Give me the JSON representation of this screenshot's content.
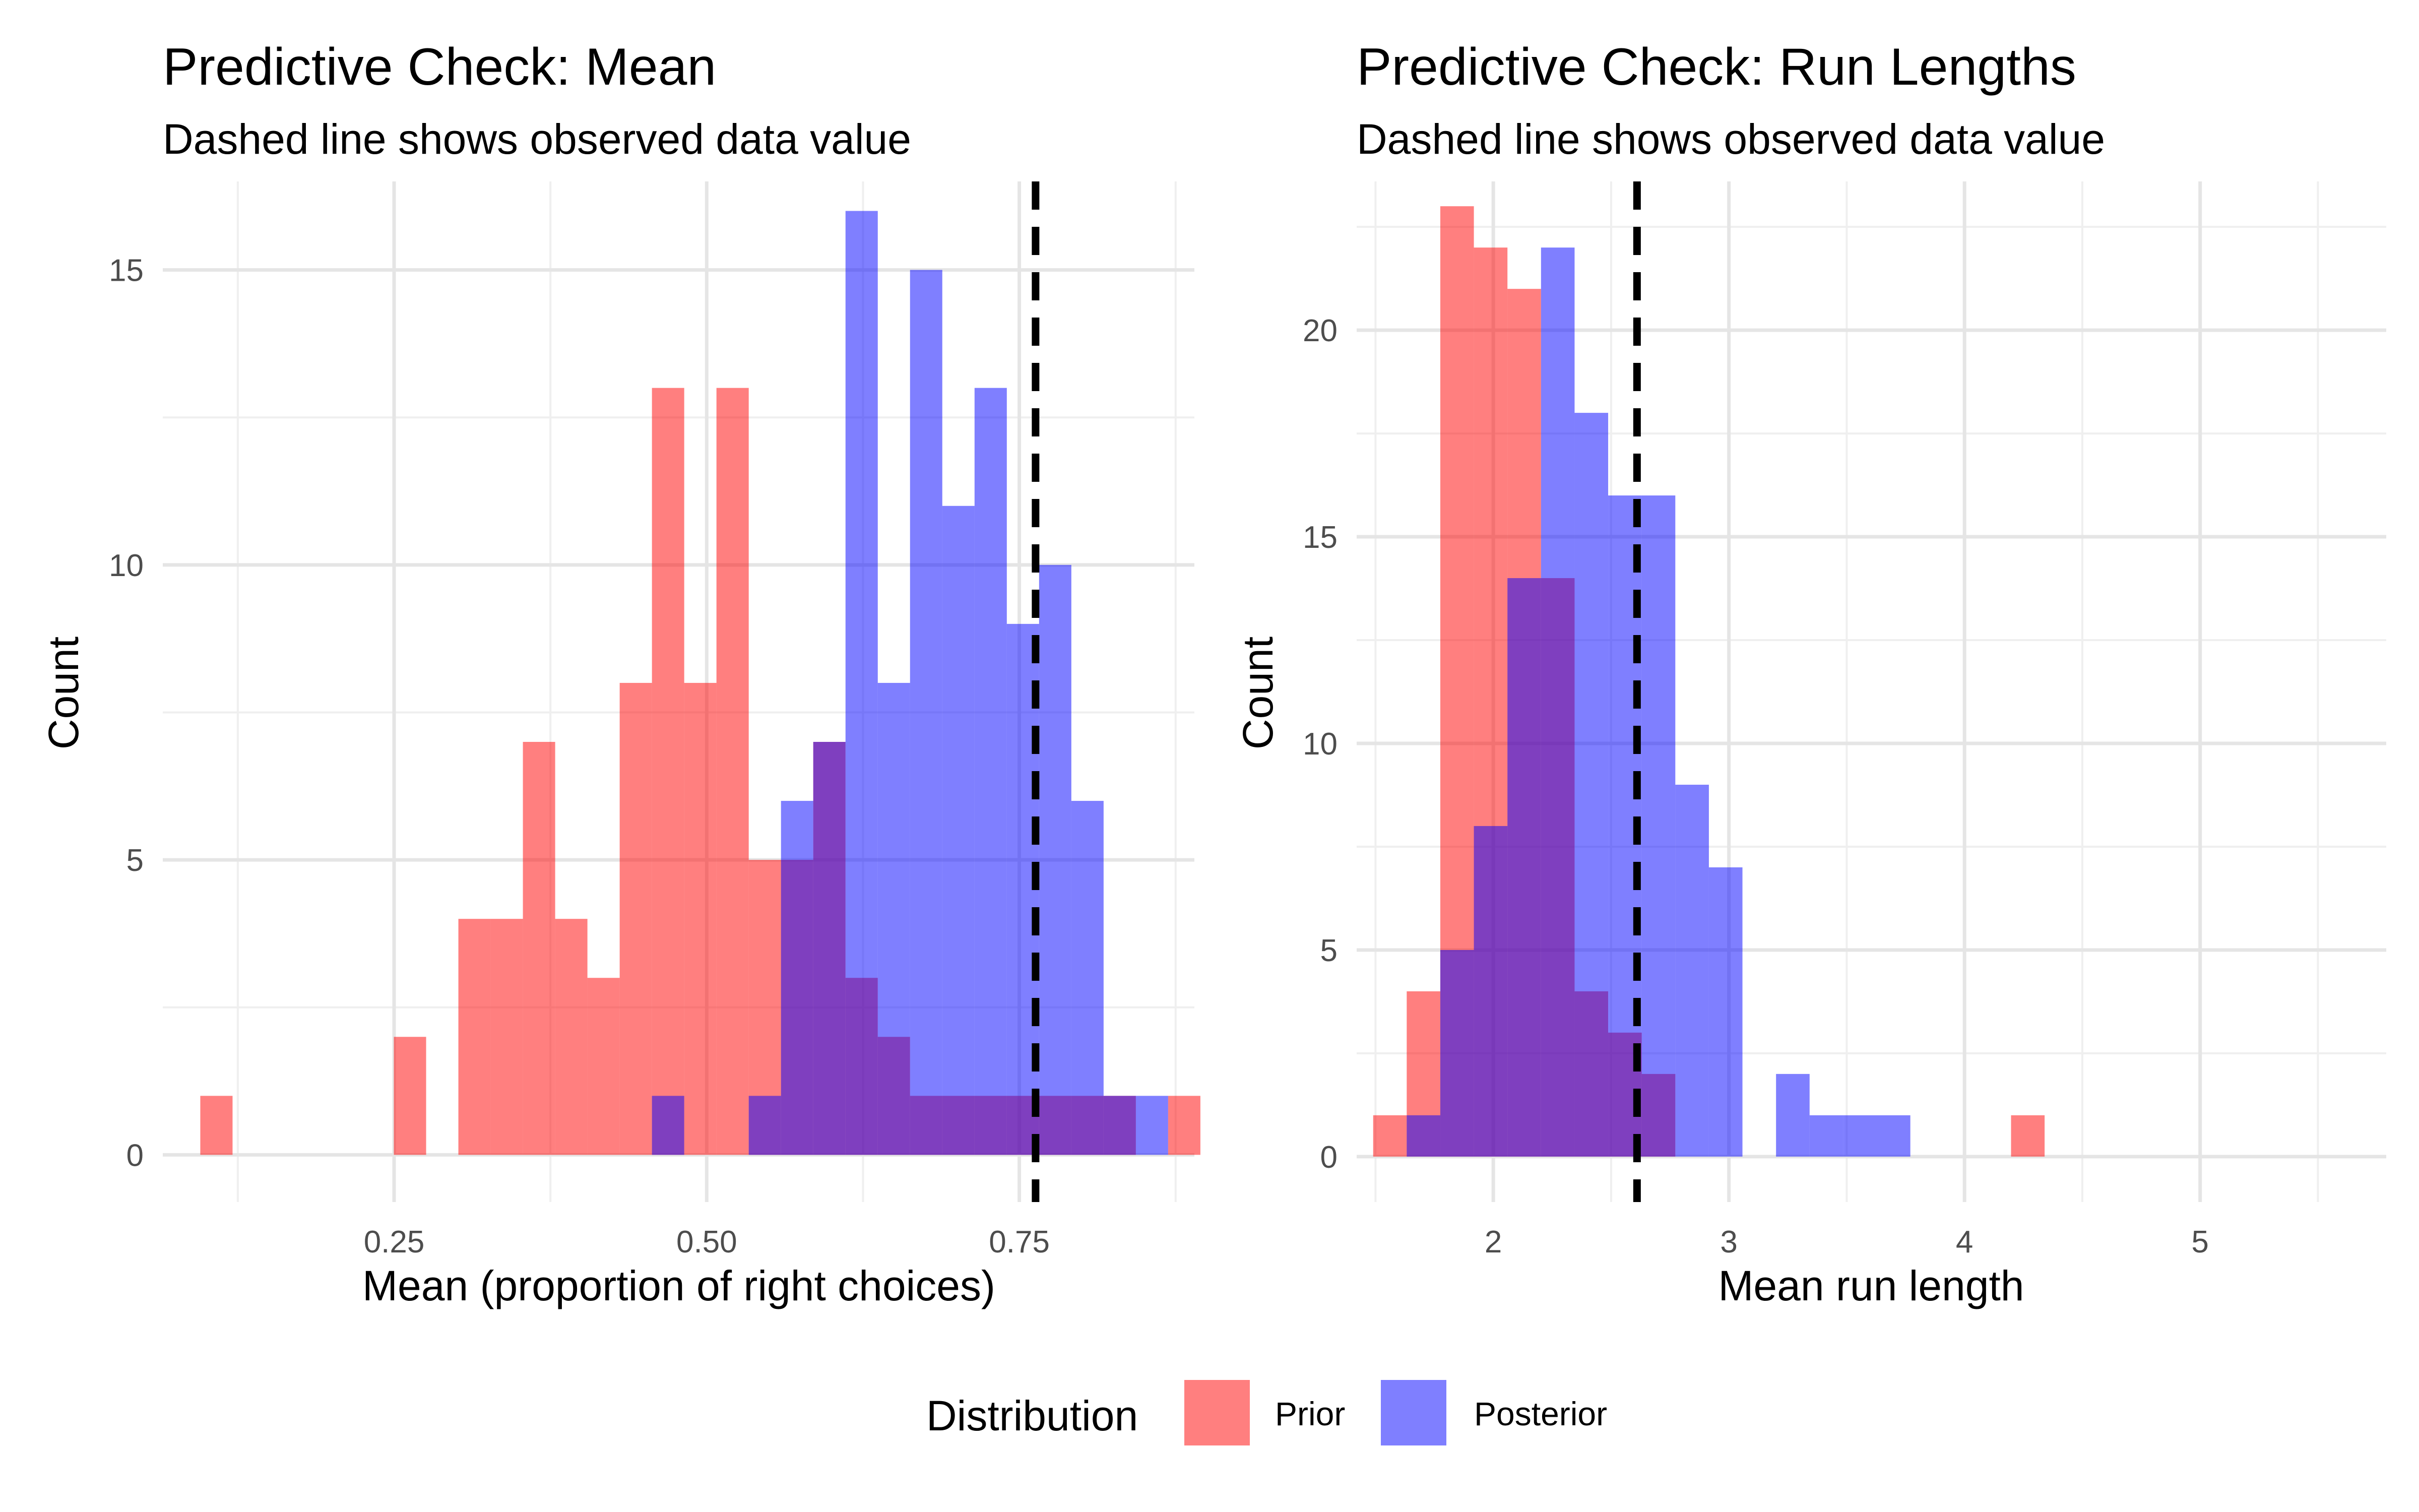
{
  "chart_data": [
    {
      "type": "histogram",
      "title": "Predictive Check: Mean",
      "subtitle": "Dashed line shows observed data value",
      "xlabel": "Mean (proportion of right choices)",
      "ylabel": "Count",
      "xlim": [
        0.065,
        0.89
      ],
      "ylim": [
        -0.8,
        16.5
      ],
      "x_ticks": [
        0.25,
        0.5,
        0.75
      ],
      "x_tick_labels": [
        "0.25",
        "0.50",
        "0.75"
      ],
      "y_ticks": [
        0,
        5,
        10,
        15
      ],
      "y_tick_labels": [
        "0",
        "5",
        "10",
        "15"
      ],
      "bin_start": 0.095,
      "bin_width": 0.0258,
      "observed_value": 0.763,
      "series": [
        {
          "name": "Prior",
          "color": "#ff0000",
          "counts": [
            1,
            0,
            0,
            0,
            0,
            0,
            2,
            0,
            4,
            4,
            7,
            4,
            3,
            8,
            13,
            8,
            13,
            5,
            5,
            7,
            3,
            2,
            1,
            1,
            1,
            1,
            1,
            1,
            1,
            0,
            1
          ]
        },
        {
          "name": "Posterior",
          "color": "#0000ff",
          "counts": [
            0,
            0,
            0,
            0,
            0,
            0,
            0,
            0,
            0,
            0,
            0,
            0,
            0,
            0,
            1,
            0,
            0,
            1,
            6,
            7,
            16,
            8,
            15,
            11,
            13,
            9,
            10,
            6,
            1,
            1,
            0
          ]
        }
      ],
      "grid": true
    },
    {
      "type": "histogram",
      "title": "Predictive Check: Run Lengths",
      "subtitle": "Dashed line shows observed data value",
      "xlabel": "Mean run length",
      "ylabel": "Count",
      "xlim": [
        1.42,
        5.79
      ],
      "ylim": [
        -1.1,
        23.6
      ],
      "x_ticks": [
        2,
        3,
        4,
        5
      ],
      "x_tick_labels": [
        "2",
        "3",
        "4",
        "5"
      ],
      "y_ticks": [
        0,
        5,
        10,
        15,
        20
      ],
      "y_tick_labels": [
        "0",
        "5",
        "10",
        "15",
        "20"
      ],
      "bin_start": 1.49,
      "bin_width": 0.1425,
      "observed_value": 2.61,
      "series": [
        {
          "name": "Prior",
          "color": "#ff0000",
          "counts": [
            1,
            4,
            23,
            22,
            21,
            14,
            4,
            3,
            2,
            0,
            0,
            0,
            0,
            0,
            0,
            0,
            0,
            0,
            0,
            1,
            0,
            0,
            0,
            0,
            0,
            0,
            0,
            0,
            0,
            0,
            0,
            0,
            0,
            0,
            0,
            1
          ]
        },
        {
          "name": "Posterior",
          "color": "#0000ff",
          "counts": [
            0,
            1,
            5,
            8,
            14,
            22,
            18,
            16,
            16,
            9,
            7,
            0,
            2,
            1,
            1,
            1,
            0,
            0,
            0,
            0,
            0,
            0,
            0,
            0,
            0,
            0,
            0,
            0,
            0,
            0,
            0,
            0,
            0,
            0,
            0,
            0
          ]
        }
      ],
      "grid": true
    }
  ],
  "legend": {
    "title": "Distribution",
    "items": [
      {
        "label": "Prior",
        "color": "#ff0000"
      },
      {
        "label": "Posterior",
        "color": "#0000ff"
      }
    ],
    "placement": "bottom"
  }
}
